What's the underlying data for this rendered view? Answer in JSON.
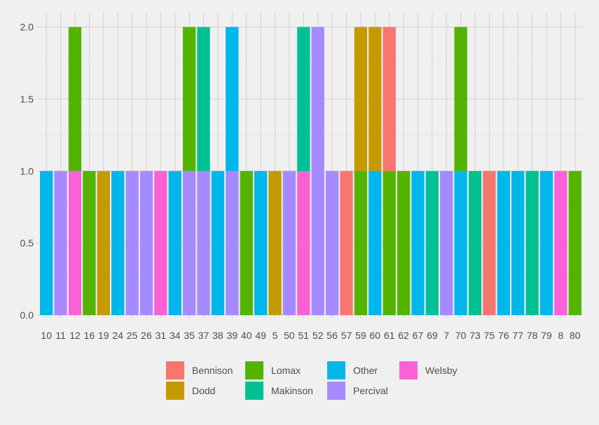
{
  "chart_data": {
    "type": "bar",
    "stacked": true,
    "categories": [
      "10",
      "11",
      "12",
      "16",
      "19",
      "24",
      "25",
      "26",
      "31",
      "34",
      "35",
      "37",
      "38",
      "39",
      "40",
      "49",
      "5",
      "50",
      "51",
      "52",
      "56",
      "57",
      "59",
      "60",
      "61",
      "62",
      "67",
      "69",
      "7",
      "70",
      "73",
      "75",
      "76",
      "77",
      "78",
      "79",
      "8",
      "80"
    ],
    "segments": [
      [
        "Other"
      ],
      [
        "Percival"
      ],
      [
        "Welsby",
        "Lomax"
      ],
      [
        "Lomax"
      ],
      [
        "Dodd"
      ],
      [
        "Other"
      ],
      [
        "Percival"
      ],
      [
        "Percival"
      ],
      [
        "Welsby"
      ],
      [
        "Other"
      ],
      [
        "Percival",
        "Lomax"
      ],
      [
        "Percival",
        "Makinson"
      ],
      [
        "Other"
      ],
      [
        "Percival",
        "Other"
      ],
      [
        "Lomax"
      ],
      [
        "Other"
      ],
      [
        "Dodd"
      ],
      [
        "Percival"
      ],
      [
        "Welsby",
        "Makinson"
      ],
      [
        "Percival",
        "Percival"
      ],
      [
        "Percival"
      ],
      [
        "Bennison"
      ],
      [
        "Lomax",
        "Dodd"
      ],
      [
        "Other",
        "Dodd"
      ],
      [
        "Lomax",
        "Bennison"
      ],
      [
        "Lomax"
      ],
      [
        "Other"
      ],
      [
        "Makinson"
      ],
      [
        "Percival"
      ],
      [
        "Other",
        "Lomax"
      ],
      [
        "Makinson"
      ],
      [
        "Bennison"
      ],
      [
        "Other"
      ],
      [
        "Other"
      ],
      [
        "Makinson"
      ],
      [
        "Other"
      ],
      [
        "Welsby"
      ],
      [
        "Lomax"
      ]
    ],
    "series": [
      {
        "name": "Bennison",
        "color": "#F8766D"
      },
      {
        "name": "Dodd",
        "color": "#C49A00"
      },
      {
        "name": "Lomax",
        "color": "#53B400"
      },
      {
        "name": "Makinson",
        "color": "#00C094"
      },
      {
        "name": "Other",
        "color": "#00B6EB"
      },
      {
        "name": "Percival",
        "color": "#A58AFF"
      },
      {
        "name": "Welsby",
        "color": "#FB61D7"
      }
    ],
    "yticks": [
      "0.0",
      "0.5",
      "1.0",
      "1.5",
      "2.0"
    ],
    "ylim": [
      0,
      2.1
    ],
    "grid": true,
    "legend_position": "bottom",
    "title": "",
    "xlabel": "",
    "ylabel": ""
  }
}
